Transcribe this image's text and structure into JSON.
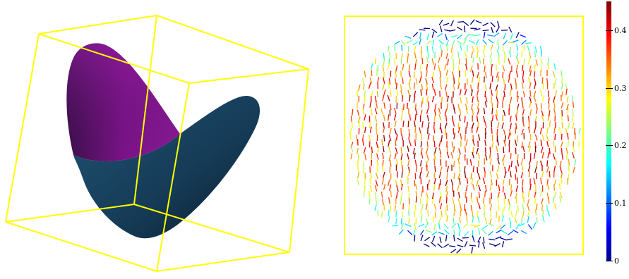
{
  "colors": {
    "frame": "#ffff00",
    "surface_top": "#7b1388",
    "surface_bottom": "#1c4a66",
    "background": "#ffffff"
  },
  "colorbar": {
    "min": 0,
    "max": 0.45,
    "ticks": [
      {
        "value": 0,
        "label": "0"
      },
      {
        "value": 0.1,
        "label": "0.1"
      },
      {
        "value": 0.2,
        "label": "0.2"
      },
      {
        "value": 0.3,
        "label": "0.3"
      },
      {
        "value": 0.4,
        "label": "0.4"
      }
    ],
    "colormap": "jet"
  },
  "views": {
    "left": "3d-surface-in-box",
    "right": "director-field-disc"
  }
}
